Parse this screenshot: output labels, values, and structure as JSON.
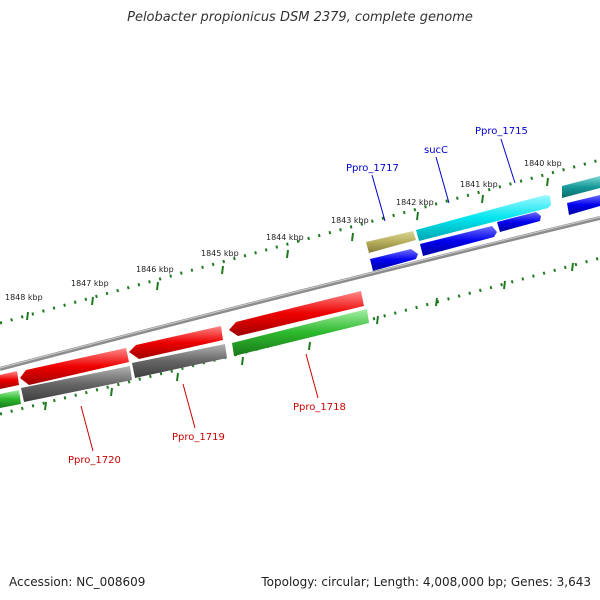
{
  "title": "Pelobacter propionicus DSM 2379, complete genome",
  "footer": {
    "accession": "Accession: NC_008609",
    "summary": "Topology: circular; Length: 4,008,000 bp; Genes: 3,643"
  },
  "colors": {
    "backbone": "#8c8c8c",
    "tick": "#1e7a1e",
    "forward_label": "#0000cc",
    "reverse_label": "#cc0000"
  },
  "ticks": [
    "1840 kbp",
    "1841 kbp",
    "1842 kbp",
    "1843 kbp",
    "1844 kbp",
    "1845 kbp",
    "1846 kbp",
    "1847 kbp",
    "1848 kbp"
  ],
  "gene_labels": {
    "ppro_1715": "Ppro_1715",
    "succ": "sucC",
    "ppro_1717": "Ppro_1717",
    "ppro_1718": "Ppro_1718",
    "ppro_1719": "Ppro_1719",
    "ppro_1720": "Ppro_1720"
  },
  "features": {
    "ppro_1715_color": "#00e5ee",
    "succ_color": "#00e5ee",
    "ppro_1717_color": "#b5ad5a",
    "cds_forward_color": "#0000ee",
    "ppro_1718_color": "#ee0000",
    "ppro_1718_cds_color": "#2db82d",
    "ppro_1719_color": "#ee0000",
    "ppro_1719_cds_color": "#666666",
    "ppro_1720_color": "#ee0000",
    "ppro_1720_cds_color": "#666666"
  }
}
